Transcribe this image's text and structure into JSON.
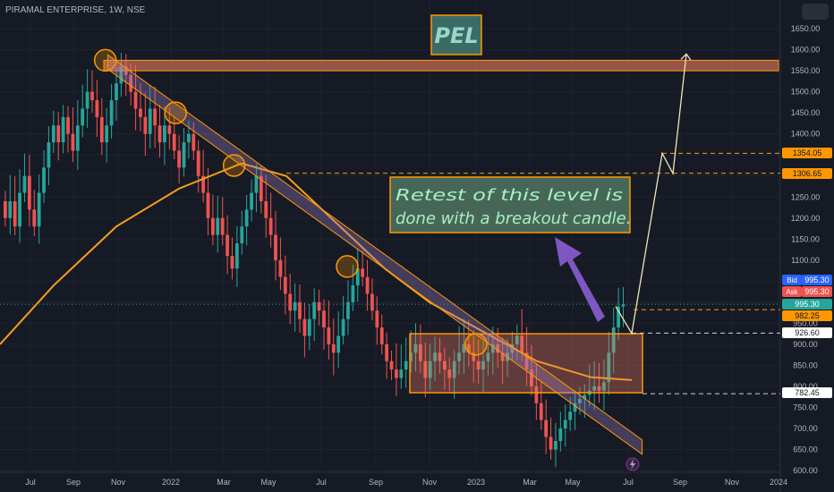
{
  "header": {
    "symbol": "PIRAMAL ENTERPRISE, 1W, NSE"
  },
  "colors": {
    "background": "#161a25",
    "bullish": "#26a69a",
    "bearish": "#ef5350",
    "moving_average": "#f6a01a",
    "zone_fill": "#ef7c62",
    "zone_border": "#ff9800",
    "trendline": "#9c7dc0",
    "arrow": "#7e57c2",
    "projection": "#f0e6b4"
  },
  "chart_data": {
    "type": "candlestick",
    "title": "PEL",
    "annotation": "Retest of this level is done with a breakout candle.",
    "y_axis": {
      "range": [
        600,
        1680
      ],
      "ticks": [
        "600.00",
        "650.00",
        "700.00",
        "750.00",
        "800.00",
        "850.00",
        "900.00",
        "950.00",
        "1000.00",
        "1050.00",
        "1100.00",
        "1150.00",
        "1200.00",
        "1250.00",
        "1300.00",
        "1350.00",
        "1400.00",
        "1450.00",
        "1500.00",
        "1550.00",
        "1600.00",
        "1650.00"
      ]
    },
    "x_axis": {
      "ticks": [
        "Jul",
        "Sep",
        "Nov",
        "2022",
        "Mar",
        "May",
        "Jul",
        "Sep",
        "Nov",
        "2023",
        "Mar",
        "May",
        "Jul",
        "Sep",
        "Nov",
        "2024"
      ]
    },
    "price_labels": [
      {
        "id": "bid",
        "tag": "Bid",
        "value": "995.30",
        "color": "#2962ff"
      },
      {
        "id": "ask",
        "tag": "Ask",
        "value": "995.30",
        "color": "#ef5350"
      },
      {
        "id": "last",
        "tag": "",
        "value": "995.30",
        "color": "#26a69a"
      },
      {
        "id": "l982",
        "tag": "",
        "value": "982.25",
        "color": "#ff9800"
      },
      {
        "id": "l926",
        "tag": "",
        "value": "926.60",
        "color": "#ffffff"
      },
      {
        "id": "l782",
        "tag": "",
        "value": "782.45",
        "color": "#ffffff"
      },
      {
        "id": "l1354",
        "tag": "",
        "value": "1354.05",
        "color": "#ff9800"
      },
      {
        "id": "l1306",
        "tag": "",
        "value": "1306.65",
        "color": "#ff9800"
      }
    ],
    "levels": {
      "resistance_zone": [
        1550,
        1575
      ],
      "range_box": [
        785,
        925
      ],
      "target_1": 1354.05,
      "target_2": 1306.65,
      "level_982": 982.25,
      "level_926": 926.6,
      "level_782": 782.45
    },
    "trendline": {
      "start": [
        0.23,
        1575
      ],
      "end": [
        0.8,
        660
      ]
    },
    "projection_path": [
      [
        995,
        0.755
      ],
      [
        1306.65,
        0.8
      ],
      [
        1354.05,
        0.79
      ],
      [
        1590,
        0.83
      ]
    ],
    "touch_points": [
      [
        0.135,
        1575
      ],
      [
        0.225,
        1450
      ],
      [
        0.3,
        1325
      ],
      [
        0.445,
        1085
      ],
      [
        0.61,
        900
      ]
    ],
    "closes_early": [
      1200,
      1240,
      1180,
      1260,
      1300,
      1220,
      1180,
      1260,
      1320,
      1380,
      1420,
      1380,
      1440,
      1400,
      1360,
      1420,
      1460,
      1500,
      1480,
      1440,
      1380,
      1420,
      1480,
      1520,
      1560,
      1540,
      1500,
      1460
    ],
    "closes_mid": [
      1440,
      1400,
      1460,
      1420,
      1380,
      1420,
      1400,
      1360,
      1320,
      1380,
      1400,
      1360,
      1300,
      1260,
      1200,
      1160,
      1200,
      1160,
      1110,
      1080,
      1140,
      1180,
      1220,
      1260,
      1300,
      1240,
      1200,
      1160,
      1100,
      1060,
      1020,
      980,
      1000,
      960,
      920,
      960,
      1000,
      980,
      940,
      900,
      880,
      920,
      960,
      1000,
      1040,
      1080,
      1060,
      1020,
      980,
      940,
      900
    ],
    "closes_range": [
      860,
      840,
      820,
      840,
      860,
      880,
      900,
      860,
      820,
      860,
      880,
      860,
      840,
      820,
      860,
      880,
      900,
      880,
      860,
      840,
      860,
      880,
      900,
      880,
      860,
      880,
      900,
      920,
      880,
      840,
      800,
      760,
      720,
      680,
      650,
      670,
      700,
      720,
      740,
      760,
      770,
      780,
      790,
      800,
      790,
      810,
      880,
      940,
      990,
      995
    ]
  }
}
